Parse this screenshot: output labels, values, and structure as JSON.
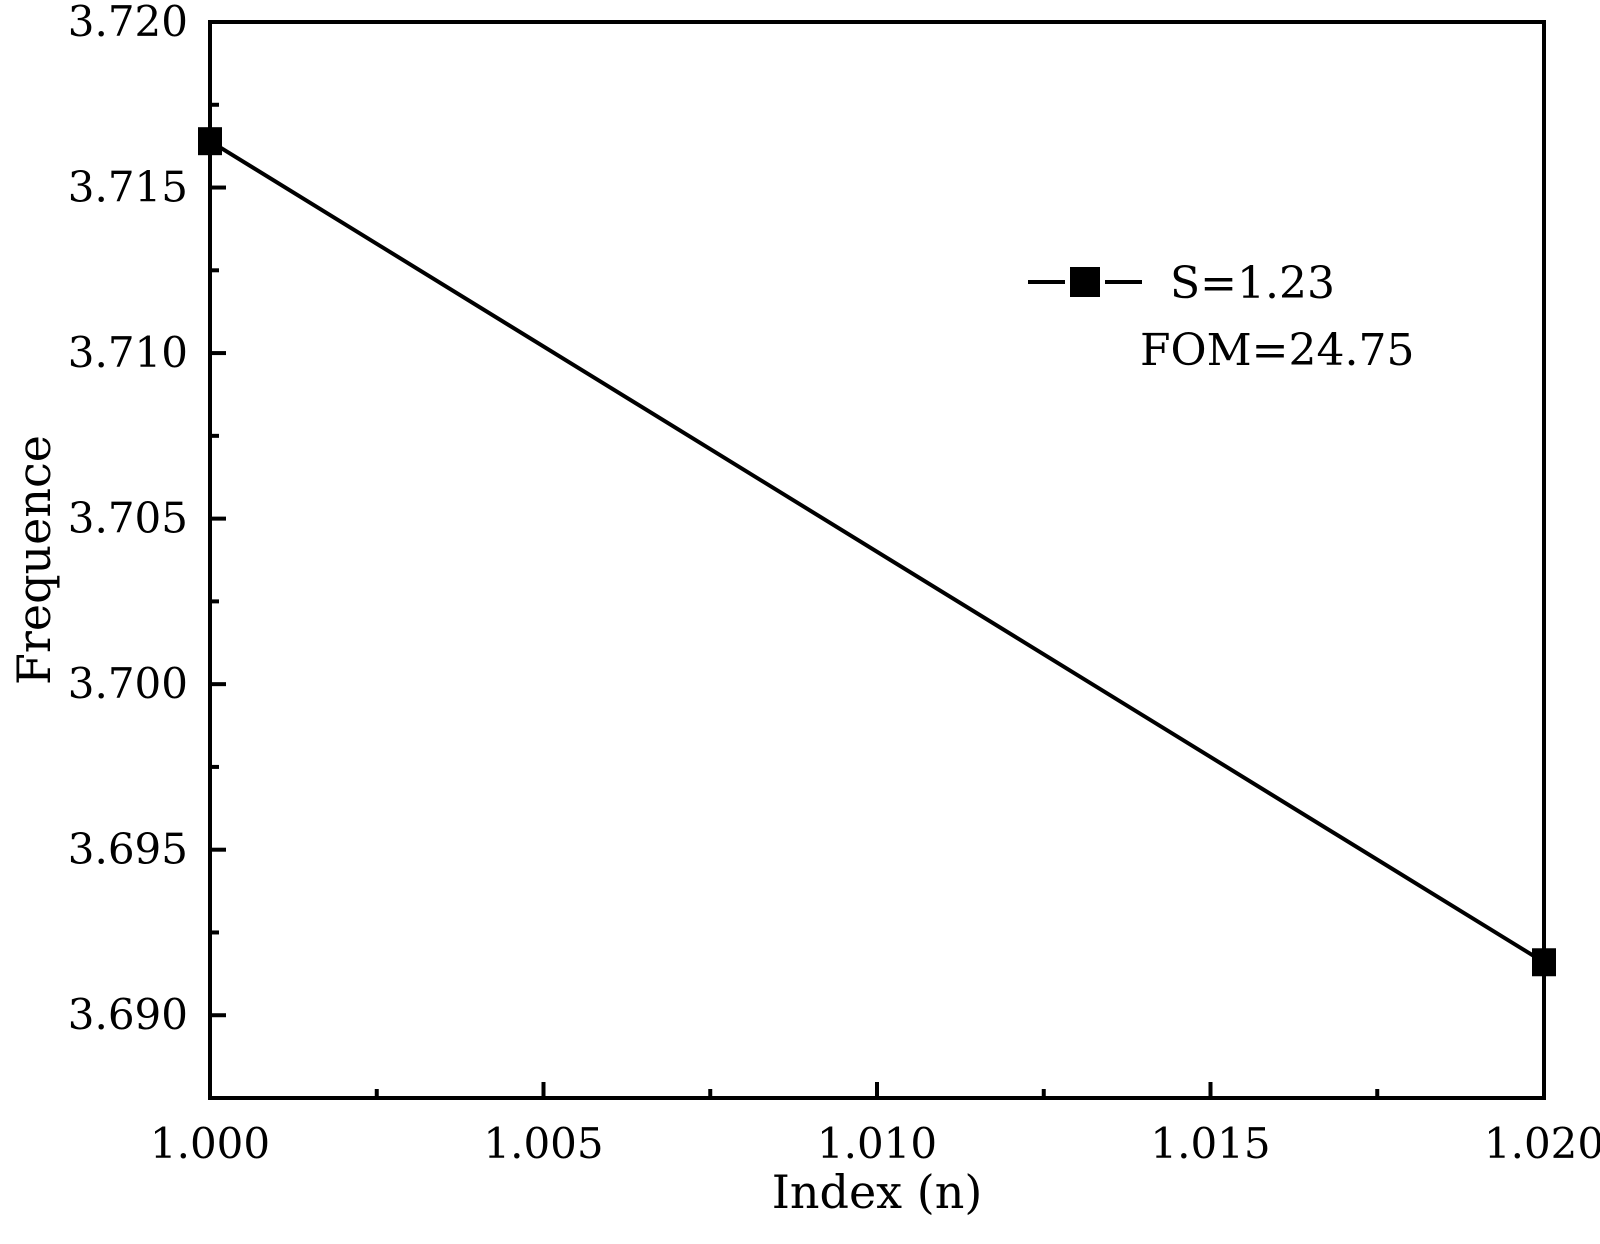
{
  "chart_data": {
    "type": "line",
    "title": "",
    "xlabel": "Index (n)",
    "ylabel": "Frequence",
    "xlim": [
      1.0,
      1.02
    ],
    "ylim": [
      3.6875,
      3.72
    ],
    "x_ticks": [
      "1.000",
      "1.005",
      "1.010",
      "1.015",
      "1.020"
    ],
    "x_tick_values": [
      1.0,
      1.005,
      1.01,
      1.015,
      1.02
    ],
    "y_ticks": [
      "3.690",
      "3.695",
      "3.700",
      "3.705",
      "3.710",
      "3.715",
      "3.720"
    ],
    "y_tick_values": [
      3.69,
      3.695,
      3.7,
      3.705,
      3.71,
      3.715,
      3.72
    ],
    "grid": false,
    "legend_position": "top-right",
    "series": [
      {
        "name": "S=1.23",
        "color": "#000000",
        "marker": "square",
        "x": [
          1.0,
          1.02
        ],
        "y": [
          3.7164,
          3.6916
        ]
      }
    ],
    "annotations": [
      "FOM=24.75"
    ]
  }
}
